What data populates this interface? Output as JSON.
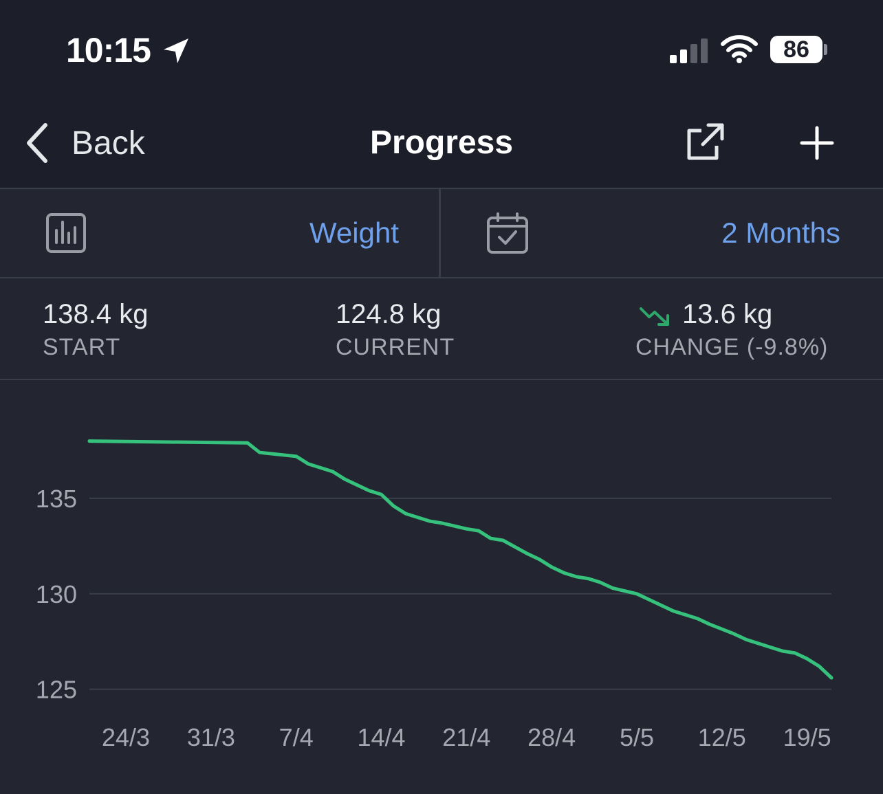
{
  "status_bar": {
    "time": "10:15",
    "battery": "86"
  },
  "nav": {
    "back_label": "Back",
    "title": "Progress"
  },
  "selectors": {
    "metric": "Weight",
    "range": "2 Months"
  },
  "stats": {
    "start_value": "138.4 kg",
    "start_label": "START",
    "current_value": "124.8 kg",
    "current_label": "CURRENT",
    "change_value": "13.6 kg",
    "change_label": "CHANGE (-9.8%)"
  },
  "colors": {
    "line": "#36c27c",
    "accent": "#6ea0ec",
    "trend": "#2ea86a"
  },
  "chart_data": {
    "type": "line",
    "ylim": [
      123.8,
      140
    ],
    "yticks": [
      135,
      130,
      125
    ],
    "ytick_labels": [
      "135",
      "130",
      "125"
    ],
    "xlim": [
      0,
      61
    ],
    "xticks": [
      3,
      10,
      17,
      24,
      31,
      38,
      45,
      52,
      59
    ],
    "xtick_labels": [
      "24/3",
      "31/3",
      "7/4",
      "14/4",
      "21/4",
      "28/4",
      "5/5",
      "12/5",
      "19/5"
    ],
    "series": [
      {
        "x": [
          0,
          13,
          14,
          17,
          18,
          20,
          21,
          23,
          24,
          25,
          26,
          28,
          29,
          31,
          32,
          33,
          34,
          36,
          37,
          38,
          39,
          40,
          41,
          42,
          43,
          45,
          46,
          48,
          49,
          50,
          51,
          53,
          54,
          56,
          57,
          58,
          59,
          60,
          61
        ],
        "y": [
          138.0,
          137.9,
          137.4,
          137.2,
          136.8,
          136.4,
          136.0,
          135.4,
          135.2,
          134.6,
          134.2,
          133.8,
          133.7,
          133.4,
          133.3,
          132.9,
          132.8,
          132.1,
          131.8,
          131.4,
          131.1,
          130.9,
          130.8,
          130.6,
          130.3,
          130.0,
          129.7,
          129.1,
          128.9,
          128.7,
          128.4,
          127.9,
          127.6,
          127.2,
          127.0,
          126.9,
          126.6,
          126.2,
          125.6
        ]
      }
    ]
  }
}
